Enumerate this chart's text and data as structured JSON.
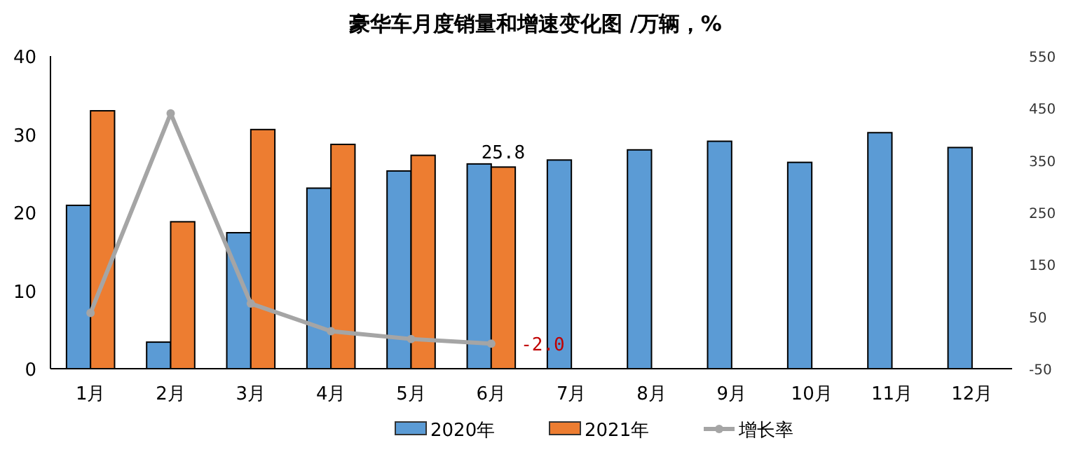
{
  "chart_data": {
    "type": "bar",
    "title": "豪华车月度销量和增速变化图  /万辆，%",
    "categories": [
      "1月",
      "2月",
      "3月",
      "4月",
      "5月",
      "6月",
      "7月",
      "8月",
      "9月",
      "10月",
      "11月",
      "12月"
    ],
    "series": [
      {
        "name": "2020年",
        "color": "#5b9bd5",
        "values": [
          20.9,
          3.4,
          17.4,
          23.1,
          25.3,
          26.2,
          26.7,
          28.0,
          29.1,
          26.4,
          30.2,
          28.3
        ]
      },
      {
        "name": "2021年",
        "color": "#ed7d31",
        "values": [
          33.0,
          18.8,
          30.6,
          28.7,
          27.3,
          25.8,
          null,
          null,
          null,
          null,
          null,
          null
        ],
        "value_labels": [
          null,
          null,
          null,
          null,
          null,
          "25.8",
          null,
          null,
          null,
          null,
          null,
          null
        ]
      },
      {
        "name": "增长率",
        "type": "line",
        "axis": "y2",
        "color": "#a5a5a5",
        "marker": "circle",
        "values": [
          57,
          440,
          75,
          22,
          7,
          -2.0,
          null,
          null,
          null,
          null,
          null,
          null
        ],
        "value_labels": [
          null,
          null,
          null,
          null,
          null,
          "-2.0",
          null,
          null,
          null,
          null,
          null,
          null
        ]
      }
    ],
    "ylim": [
      0,
      40
    ],
    "yticks": [
      0,
      10,
      20,
      30,
      40
    ],
    "y2lim": [
      -50,
      550
    ],
    "y2ticks": [
      -50,
      50,
      150,
      250,
      350,
      450,
      550
    ],
    "grid": false,
    "legend": "bottom"
  }
}
